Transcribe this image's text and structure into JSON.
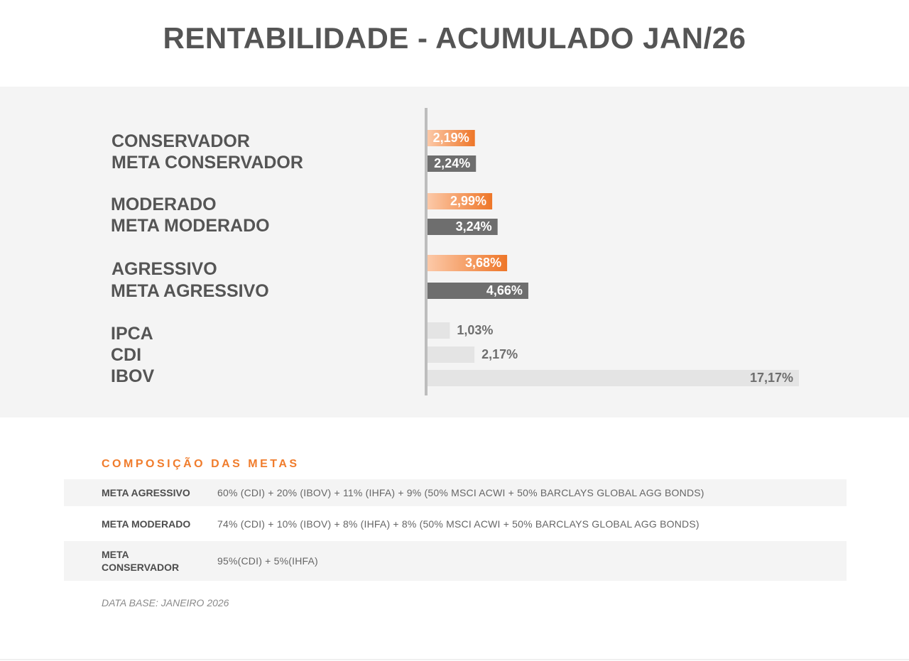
{
  "header": {
    "title": "RENTABILIDADE - ACUMULADO JAN/26"
  },
  "colors": {
    "portfolio_bar_start": "#fcc9a8",
    "portfolio_bar_end": "#ee7628",
    "meta_bar": "#6e6e6e",
    "benchmark_bar": "#e4e4e4",
    "label_text": "#555555",
    "accent": "#f07c2c"
  },
  "chart_data": {
    "type": "bar",
    "orientation": "horizontal",
    "value_unit": "%",
    "categories": [
      "CONSERVADOR",
      "META CONSERVADOR",
      "MODERADO",
      "META MODERADO",
      "AGRESSIVO",
      "META AGRESSIVO",
      "IPCA",
      "CDI",
      "IBOV"
    ],
    "values": [
      2.19,
      2.24,
      2.99,
      3.24,
      3.68,
      4.66,
      1.03,
      2.17,
      17.17
    ],
    "value_labels": [
      "2,19%",
      "2,24%",
      "2,99%",
      "3,24%",
      "3,68%",
      "4,66%",
      "1,03%",
      "2,17%",
      "17,17%"
    ],
    "kinds": [
      "portfolio",
      "meta",
      "portfolio",
      "meta",
      "portfolio",
      "meta",
      "benchmark",
      "benchmark",
      "benchmark"
    ],
    "xlim": [
      0,
      17.17
    ],
    "grid": false,
    "legend": "none"
  },
  "composition": {
    "title": "COMPOSIÇÃO DAS METAS",
    "rows": [
      {
        "name": "META AGRESSIVO",
        "formula": "60% (CDI) + 20% (IBOV) + 11% (IHFA) + 9% (50% MSCI ACWI + 50% BARCLAYS GLOBAL AGG BONDS)"
      },
      {
        "name": "META MODERADO",
        "formula": "74% (CDI) + 10% (IBOV) + 8% (IHFA) + 8% (50% MSCI ACWI + 50% BARCLAYS GLOBAL AGG BONDS)"
      },
      {
        "name": "META CONSERVADOR",
        "formula": "95%(CDI) + 5%(IHFA)"
      }
    ]
  },
  "footer": {
    "data_base": "DATA BASE: JANEIRO 2026"
  }
}
